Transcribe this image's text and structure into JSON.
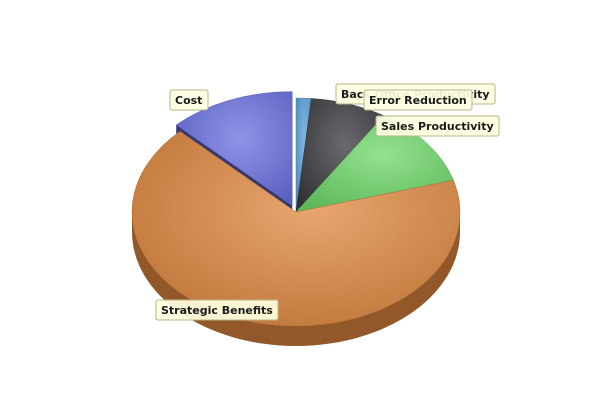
{
  "chart_data": {
    "type": "pie",
    "style": "3d-exploded",
    "title": "",
    "legend": "none",
    "slices": [
      {
        "label": "Back Office Productivity",
        "value": 1.5,
        "color": "#5ba3dc"
      },
      {
        "label": "Error Reduction",
        "value": 7.5,
        "color": "#3a3a3f"
      },
      {
        "label": "Sales Productivity",
        "value": 11.5,
        "color": "#6fd86a"
      },
      {
        "label": "Strategic Benefits",
        "value": 67.0,
        "color": "#e0883f"
      },
      {
        "label": "Cost",
        "value": 12.5,
        "color": "#6a70e0"
      }
    ]
  }
}
